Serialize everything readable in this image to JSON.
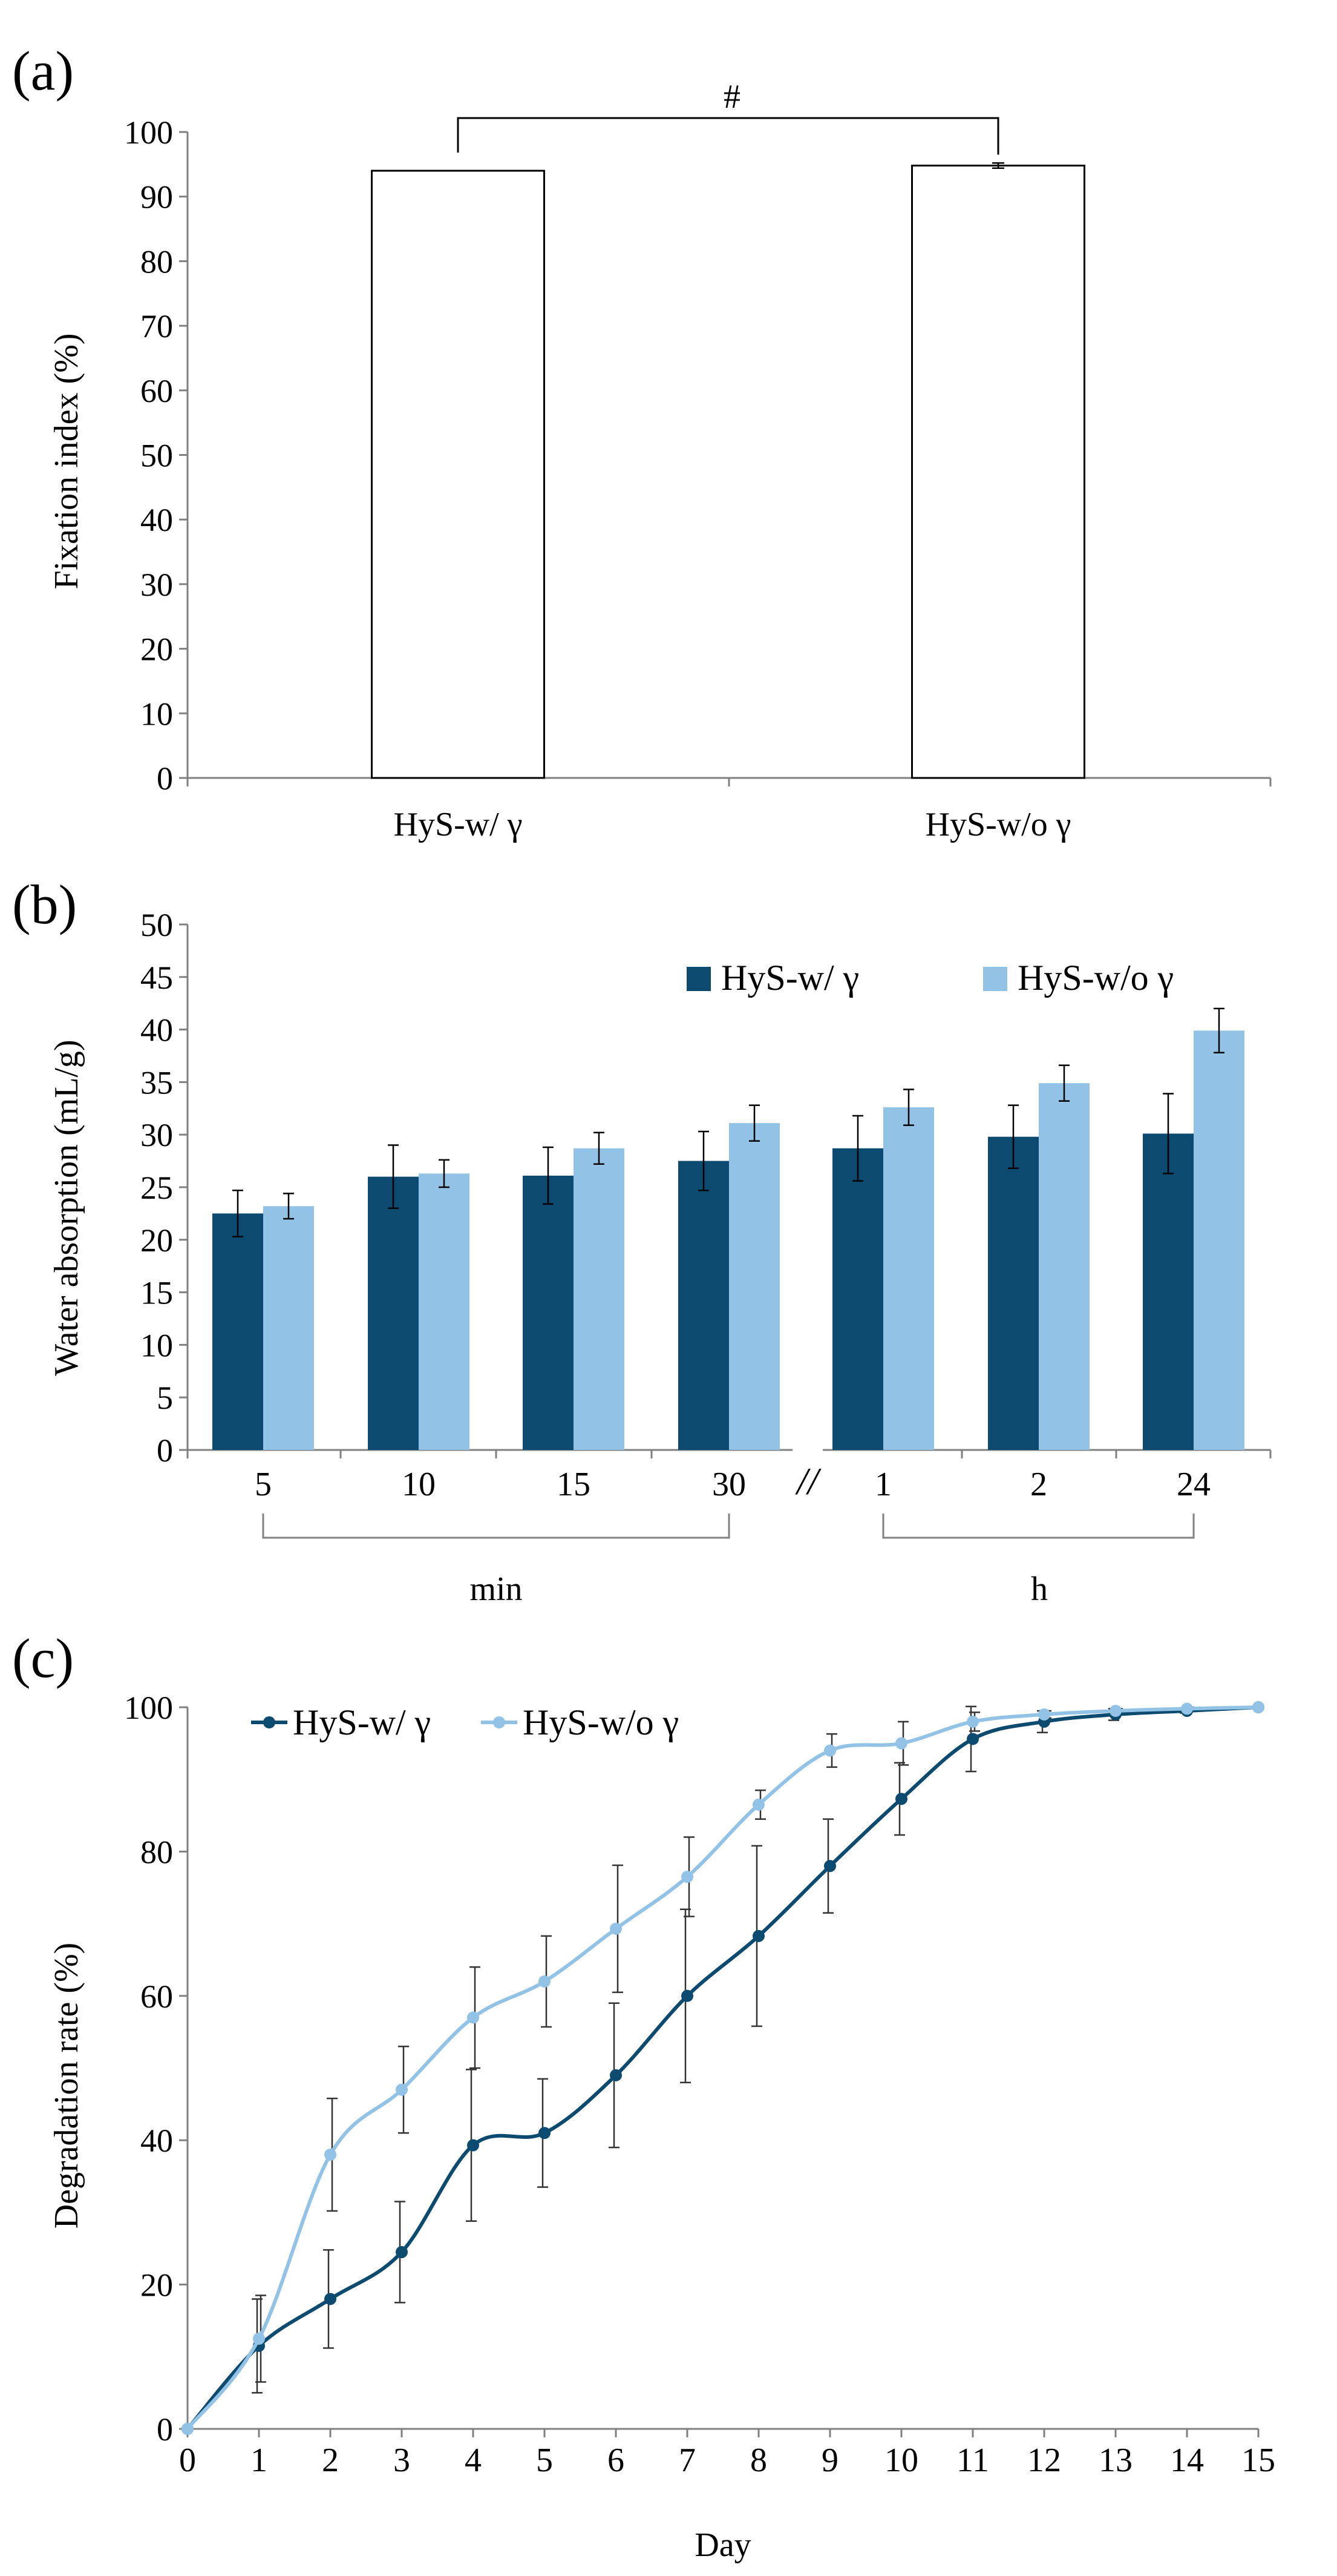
{
  "colors": {
    "dark": "#0d4a6f",
    "light": "#92c3e6",
    "axis": "#808080",
    "ink": "#000000",
    "bar_fill": "#ffffff",
    "bar_edge": "#000000"
  },
  "chart_data": [
    {
      "panel_label": "(a)",
      "type": "bar",
      "ylabel": "Fixation index (%)",
      "ylim": [
        0,
        100
      ],
      "yticks": [
        "0",
        "10",
        "20",
        "30",
        "40",
        "50",
        "60",
        "70",
        "80",
        "90",
        "100"
      ],
      "categories": [
        "HyS-w/ γ",
        "HyS-w/o γ"
      ],
      "values": [
        94.0,
        94.8
      ],
      "errors": [
        0,
        0.4
      ],
      "significance": {
        "between": [
          0,
          1
        ],
        "symbol": "#"
      },
      "grid": false
    },
    {
      "panel_label": "(b)",
      "type": "bar",
      "ylabel": "Water absorption (mL/g)",
      "ylim": [
        0,
        50
      ],
      "yticks": [
        "0",
        "5",
        "10",
        "15",
        "20",
        "25",
        "30",
        "35",
        "40",
        "45",
        "50"
      ],
      "categories": [
        "5",
        "10",
        "15",
        "30",
        "1",
        "2",
        "24"
      ],
      "series": [
        {
          "name": "HyS-w/ γ",
          "values": [
            22.5,
            26.0,
            26.1,
            27.5,
            28.7,
            29.8,
            30.1
          ],
          "errors": [
            2.2,
            3.0,
            2.7,
            2.8,
            3.1,
            3.0,
            3.8
          ]
        },
        {
          "name": "HyS-w/o γ",
          "values": [
            23.2,
            26.3,
            28.7,
            31.1,
            32.6,
            34.9,
            39.9
          ],
          "errors": [
            1.2,
            1.3,
            1.5,
            1.7,
            1.7,
            1.7,
            2.1
          ]
        }
      ],
      "groups": [
        {
          "label": "min",
          "from": 0,
          "to": 3
        },
        {
          "label": "h",
          "from": 4,
          "to": 6
        }
      ],
      "axis_break": "//",
      "legend": "top-right",
      "grid": false
    },
    {
      "panel_label": "(c)",
      "type": "line",
      "xlabel": "Day",
      "ylabel": "Degradation rate (%)",
      "ylim": [
        0,
        100
      ],
      "xlim": [
        0,
        15
      ],
      "yticks": [
        "0",
        "20",
        "40",
        "60",
        "80",
        "100"
      ],
      "x": [
        0,
        1,
        2,
        3,
        4,
        5,
        6,
        7,
        8,
        9,
        10,
        11,
        12,
        13,
        14,
        15
      ],
      "xticks": [
        "0",
        "1",
        "2",
        "3",
        "4",
        "5",
        "6",
        "7",
        "8",
        "9",
        "10",
        "11",
        "12",
        "13",
        "14",
        "15"
      ],
      "series": [
        {
          "name": "HyS-w/ γ",
          "values": [
            0,
            11.5,
            18.0,
            24.5,
            39.3,
            41.0,
            49.0,
            60.0,
            68.3,
            78.0,
            87.3,
            95.6,
            98.0,
            99.0,
            99.5,
            100
          ],
          "errors": [
            0,
            6.5,
            6.8,
            7.0,
            10.5,
            7.5,
            10.0,
            12.0,
            12.5,
            6.5,
            5.0,
            4.5,
            1.5,
            0.8,
            0.3,
            0
          ]
        },
        {
          "name": "HyS-w/o γ",
          "values": [
            0,
            12.5,
            38.0,
            47.0,
            57.0,
            62.0,
            69.3,
            76.5,
            86.5,
            94.0,
            95.0,
            98.0,
            99.0,
            99.5,
            99.8,
            100
          ],
          "errors": [
            0,
            6.0,
            7.8,
            6.0,
            7.0,
            6.3,
            8.8,
            5.5,
            2.0,
            2.3,
            3.0,
            1.3,
            0.5,
            0.3,
            0.2,
            0
          ]
        }
      ],
      "legend": "top-left",
      "grid": false
    }
  ]
}
